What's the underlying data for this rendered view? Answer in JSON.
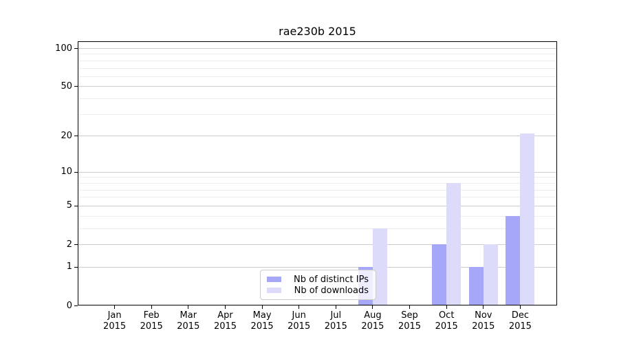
{
  "chart_data": {
    "type": "bar",
    "title": "rae230b 2015",
    "scale": "log1p",
    "ylim": [
      0,
      112
    ],
    "grid": "on",
    "legend_position": "lower-center-left-of-middle",
    "x_labels": [
      {
        "line1": "Jan",
        "line2": "2015"
      },
      {
        "line1": "Feb",
        "line2": "2015"
      },
      {
        "line1": "Mar",
        "line2": "2015"
      },
      {
        "line1": "Apr",
        "line2": "2015"
      },
      {
        "line1": "May",
        "line2": "2015"
      },
      {
        "line1": "Jun",
        "line2": "2015"
      },
      {
        "line1": "Jul",
        "line2": "2015"
      },
      {
        "line1": "Aug",
        "line2": "2015"
      },
      {
        "line1": "Sep",
        "line2": "2015"
      },
      {
        "line1": "Oct",
        "line2": "2015"
      },
      {
        "line1": "Nov",
        "line2": "2015"
      },
      {
        "line1": "Dec",
        "line2": "2015"
      }
    ],
    "y_ticks": [
      {
        "label": "0",
        "value": 0
      },
      {
        "label": "1",
        "value": 1
      },
      {
        "label": "2",
        "value": 2
      },
      {
        "label": "5",
        "value": 5
      },
      {
        "label": "10",
        "value": 10
      },
      {
        "label": "20",
        "value": 20
      },
      {
        "label": "50",
        "value": 50
      },
      {
        "label": "100",
        "value": 100
      }
    ],
    "y_minor_ticks": [
      3,
      4,
      6,
      7,
      8,
      9,
      30,
      40,
      60,
      70,
      80,
      90
    ],
    "series": [
      {
        "name": "Nb of distinct IPs",
        "color": "#a7a7fa",
        "values": [
          0,
          0,
          0,
          0,
          0,
          0,
          0,
          1,
          0,
          2,
          1,
          4
        ]
      },
      {
        "name": "Nb of downloads",
        "color": "#dcdcfa",
        "values": [
          0,
          0,
          0,
          0,
          0,
          0,
          0,
          3,
          0,
          8,
          2,
          21
        ]
      }
    ]
  }
}
